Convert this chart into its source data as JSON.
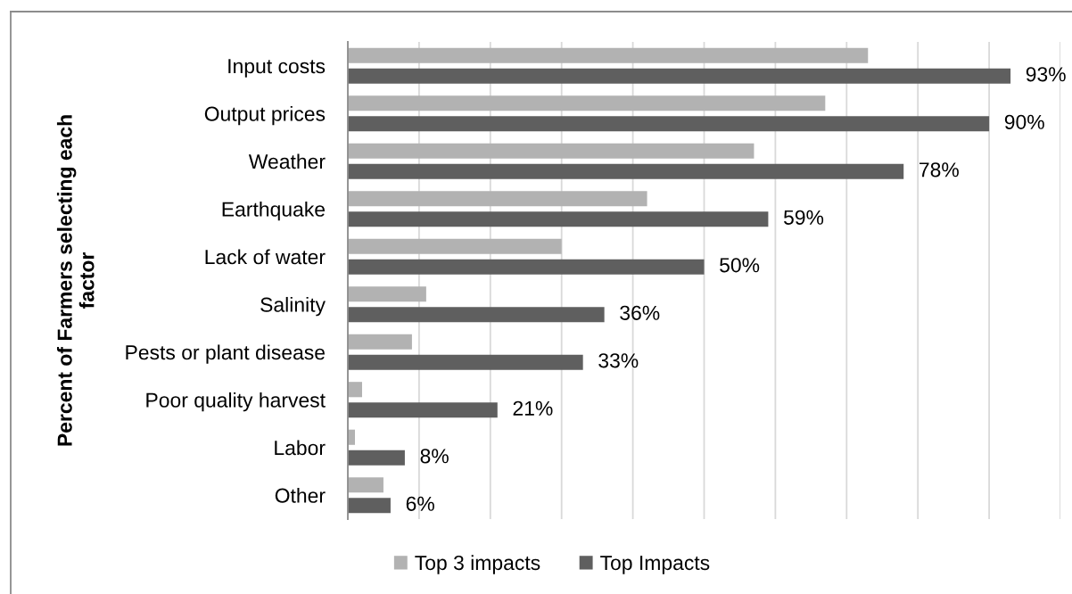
{
  "chart_data": {
    "type": "bar",
    "orientation": "horizontal",
    "ylabel": "Percent of Farmers selecting each\nfactor",
    "categories": [
      "Input costs",
      "Output prices",
      "Weather",
      "Earthquake",
      "Lack of water",
      "Salinity",
      "Pests or plant disease",
      "Poor quality harvest",
      "Labor",
      "Other"
    ],
    "series": [
      {
        "name": "Top 3 impacts",
        "color": "#b2b2b2",
        "values": [
          73,
          67,
          57,
          42,
          30,
          11,
          9,
          2,
          1,
          5
        ]
      },
      {
        "name": "Top Impacts",
        "color": "#5f5f5f",
        "values": [
          93,
          90,
          78,
          59,
          50,
          36,
          33,
          21,
          8,
          6
        ],
        "value_labels": [
          "93%",
          "90%",
          "78%",
          "59%",
          "50%",
          "36%",
          "33%",
          "21%",
          "8%",
          "6%"
        ]
      }
    ],
    "xlim": [
      0,
      100
    ],
    "xticks": [
      {
        "value": 0,
        "label": null
      },
      {
        "value": 10,
        "label": null
      },
      {
        "value": 20,
        "label": null
      },
      {
        "value": 30,
        "label": null
      },
      {
        "value": 40,
        "label": null
      },
      {
        "value": 50,
        "label": null
      },
      {
        "value": 60,
        "label": null
      },
      {
        "value": 70,
        "label": null
      },
      {
        "value": 80,
        "label": null
      },
      {
        "value": 90,
        "label": null
      },
      {
        "value": 100,
        "label": null
      }
    ],
    "grid": "x",
    "legend": "bottom",
    "tick_labels": "y"
  }
}
